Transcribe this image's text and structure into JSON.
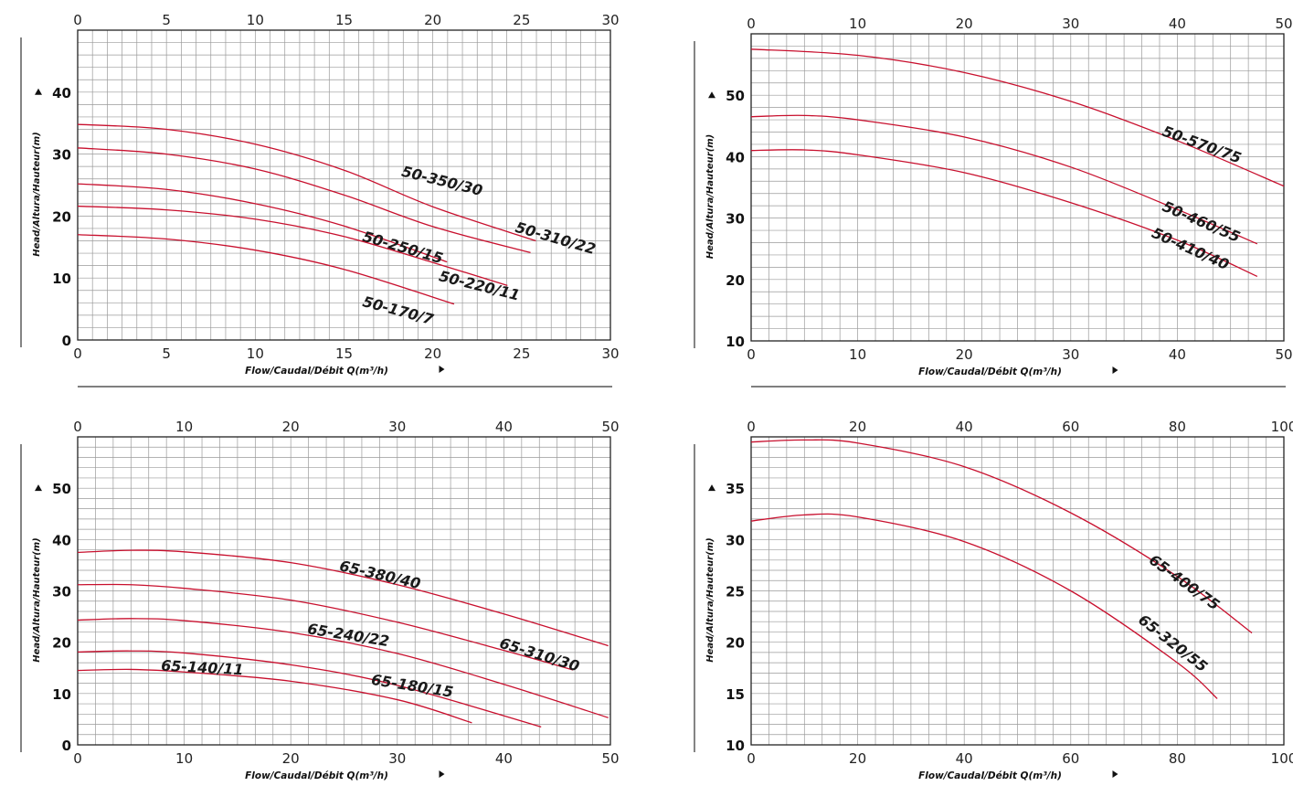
{
  "colors": {
    "curve": "#c8102e",
    "grid": "#9a9a9a",
    "axis": "#222222"
  },
  "chart_data": [
    {
      "type": "line",
      "xlabel": "Flow/Caudal/Débit Q(m³/h)",
      "ylabel": "Head/Altura/Hauteur(m)",
      "xlim": [
        0,
        30
      ],
      "ylim": [
        0,
        50
      ],
      "x_ticks": [
        0,
        5,
        10,
        15,
        20,
        25,
        30
      ],
      "x_tick_labels": [
        "0",
        "5",
        "10",
        "15",
        "20",
        "25",
        "30"
      ],
      "y_ticks": [
        0,
        10,
        20,
        30,
        40
      ],
      "y_tick_labels": [
        "0",
        "10",
        "20",
        "30",
        "40"
      ],
      "grid": true,
      "series": [
        {
          "name": "50-350/30",
          "x": [
            0,
            5,
            10,
            15,
            20,
            25.8
          ],
          "y": [
            34.8,
            34.0,
            31.6,
            27.4,
            21.5,
            16.0
          ],
          "label_at": [
            18.2,
            26.5
          ],
          "label_angle": 14
        },
        {
          "name": "50-310/22",
          "x": [
            0,
            5,
            10,
            15,
            20,
            25.5
          ],
          "y": [
            31.0,
            30.0,
            27.6,
            23.4,
            18.3,
            14.1
          ],
          "label_at": [
            24.6,
            17.5
          ],
          "label_angle": 16
        },
        {
          "name": "50-250/15",
          "x": [
            0,
            5,
            10,
            15,
            20.8
          ],
          "y": [
            25.2,
            24.3,
            22.0,
            18.4,
            12.6
          ],
          "label_at": [
            16.0,
            16.0
          ],
          "label_angle": 16
        },
        {
          "name": "50-220/11",
          "x": [
            0,
            5,
            10,
            15,
            20,
            24.2
          ],
          "y": [
            21.6,
            21.0,
            19.5,
            16.7,
            12.5,
            8.8
          ],
          "label_at": [
            20.3,
            9.6
          ],
          "label_angle": 14
        },
        {
          "name": "50-170/7",
          "x": [
            0,
            5,
            10,
            15,
            21.2
          ],
          "y": [
            17.0,
            16.3,
            14.5,
            11.4,
            5.8
          ],
          "label_at": [
            16.0,
            5.5
          ],
          "label_angle": 15
        }
      ]
    },
    {
      "type": "line",
      "xlabel": "Flow/Caudal/Débit Q(m³/h)",
      "ylabel": "Head/Altura/Hauteur(m)",
      "xlim": [
        0,
        50
      ],
      "ylim": [
        10,
        60
      ],
      "x_ticks": [
        0,
        10,
        20,
        30,
        40,
        50
      ],
      "x_tick_labels": [
        "0",
        "10",
        "20",
        "30",
        "40",
        "50"
      ],
      "y_ticks": [
        10,
        20,
        30,
        40,
        50
      ],
      "y_tick_labels": [
        "10",
        "20",
        "30",
        "40",
        "50"
      ],
      "grid": true,
      "series": [
        {
          "name": "50-570/75",
          "x": [
            0,
            10,
            20,
            30,
            40,
            50
          ],
          "y": [
            57.5,
            56.5,
            53.7,
            49.0,
            42.6,
            35.2
          ],
          "label_at": [
            38.5,
            43.5
          ],
          "label_angle": 20
        },
        {
          "name": "50-460/55",
          "x": [
            0,
            5,
            10,
            20,
            30,
            40,
            47.5
          ],
          "y": [
            46.5,
            46.7,
            46.0,
            43.2,
            38.3,
            31.4,
            25.8
          ],
          "label_at": [
            38.5,
            31.3
          ],
          "label_angle": 23
        },
        {
          "name": "50-410/40",
          "x": [
            0,
            5,
            10,
            20,
            30,
            40,
            47.5
          ],
          "y": [
            41.0,
            41.1,
            40.3,
            37.4,
            32.5,
            26.4,
            20.5
          ],
          "label_at": [
            37.5,
            27.0
          ],
          "label_angle": 24
        }
      ]
    },
    {
      "type": "line",
      "xlabel": "Flow/Caudal/Débit Q(m³/h)",
      "ylabel": "Head/Altura/Hauteur(m)",
      "xlim": [
        0,
        50
      ],
      "ylim": [
        0,
        60
      ],
      "x_ticks": [
        0,
        10,
        20,
        30,
        40,
        50
      ],
      "x_tick_labels": [
        "0",
        "10",
        "20",
        "30",
        "40",
        "50"
      ],
      "y_ticks": [
        0,
        10,
        20,
        30,
        40,
        50
      ],
      "y_tick_labels": [
        "0",
        "10",
        "20",
        "30",
        "40",
        "50"
      ],
      "grid": true,
      "series": [
        {
          "name": "65-380/40",
          "x": [
            0,
            5,
            10,
            20,
            30,
            40,
            49.8
          ],
          "y": [
            37.5,
            37.9,
            37.6,
            35.5,
            31.2,
            25.5,
            19.3
          ],
          "label_at": [
            24.5,
            34.0
          ],
          "label_angle": 13
        },
        {
          "name": "65-310/30",
          "x": [
            0,
            5,
            10,
            20,
            30,
            40,
            46.5
          ],
          "y": [
            31.2,
            31.2,
            30.5,
            28.2,
            23.9,
            18.4,
            14.6
          ],
          "label_at": [
            39.5,
            19.0
          ],
          "label_angle": 17
        },
        {
          "name": "65-240/22",
          "x": [
            0,
            5,
            10,
            20,
            30,
            40,
            49.8
          ],
          "y": [
            24.3,
            24.6,
            24.2,
            21.9,
            17.8,
            11.8,
            5.3
          ],
          "label_at": [
            21.5,
            21.7
          ],
          "label_angle": 9
        },
        {
          "name": "65-180/15",
          "x": [
            0,
            5,
            10,
            20,
            30,
            43.5
          ],
          "y": [
            18.1,
            18.3,
            17.9,
            15.6,
            11.6,
            3.5
          ],
          "label_at": [
            27.5,
            11.8
          ],
          "label_angle": 9
        },
        {
          "name": "65-140/11",
          "x": [
            0,
            5,
            10,
            20,
            30,
            37
          ],
          "y": [
            14.5,
            14.7,
            14.2,
            12.4,
            8.8,
            4.3
          ],
          "label_at": [
            7.8,
            14.5
          ],
          "label_angle": 3
        }
      ]
    },
    {
      "type": "line",
      "xlabel": "Flow/Caudal/Débit Q(m³/h)",
      "ylabel": "Head/Altura/Hauteur(m)",
      "xlim": [
        0,
        100
      ],
      "ylim": [
        10,
        40
      ],
      "x_ticks": [
        0,
        20,
        40,
        60,
        80,
        100
      ],
      "x_tick_labels": [
        "0",
        "20",
        "40",
        "60",
        "80",
        "100"
      ],
      "y_ticks": [
        10,
        15,
        20,
        25,
        30,
        35
      ],
      "y_tick_labels": [
        "10",
        "15",
        "20",
        "25",
        "30",
        "35"
      ],
      "grid": true,
      "series": [
        {
          "name": "65-400/75",
          "x": [
            0,
            10,
            20,
            40,
            60,
            80,
            94
          ],
          "y": [
            39.5,
            39.7,
            39.4,
            37.1,
            32.6,
            26.4,
            20.9
          ],
          "label_at": [
            74.5,
            27.8
          ],
          "label_angle": 36
        },
        {
          "name": "65-320/55",
          "x": [
            0,
            10,
            20,
            40,
            60,
            80,
            87.5
          ],
          "y": [
            31.8,
            32.4,
            32.2,
            29.8,
            25.0,
            18.0,
            14.5
          ],
          "label_at": [
            72.5,
            22.0
          ],
          "label_angle": 38
        }
      ]
    }
  ]
}
